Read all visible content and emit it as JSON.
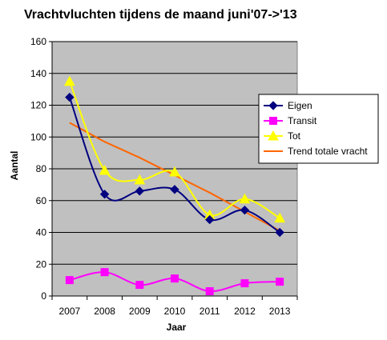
{
  "chart_data": {
    "type": "line",
    "title": "Vrachtvluchten tijdens de maand juni'07->'13",
    "xlabel": "Jaar",
    "ylabel": "Aantal",
    "categories": [
      "2007",
      "2008",
      "2009",
      "2010",
      "2011",
      "2012",
      "2013"
    ],
    "ylim": [
      0,
      160
    ],
    "yticks": [
      0,
      20,
      40,
      60,
      80,
      100,
      120,
      140,
      160
    ],
    "grid": true,
    "plot_background": "#c0c0c0",
    "legend_position": "right",
    "series": [
      {
        "name": "Eigen",
        "color": "#000080",
        "marker": "diamond",
        "smooth": true,
        "values": [
          125,
          64,
          66,
          67,
          48,
          54,
          40
        ]
      },
      {
        "name": "Transit",
        "color": "#ff00ff",
        "marker": "square",
        "smooth": true,
        "values": [
          10,
          15,
          7,
          11,
          3,
          8,
          9
        ]
      },
      {
        "name": "Tot",
        "color": "#ffff00",
        "marker": "triangle",
        "smooth": true,
        "values": [
          135,
          79,
          73,
          78,
          51,
          61,
          49
        ]
      },
      {
        "name": "Trend totale vracht",
        "color": "#ff6600",
        "marker": "none",
        "smooth": false,
        "values": [
          109,
          97,
          87,
          76,
          65,
          53,
          41
        ]
      }
    ]
  }
}
